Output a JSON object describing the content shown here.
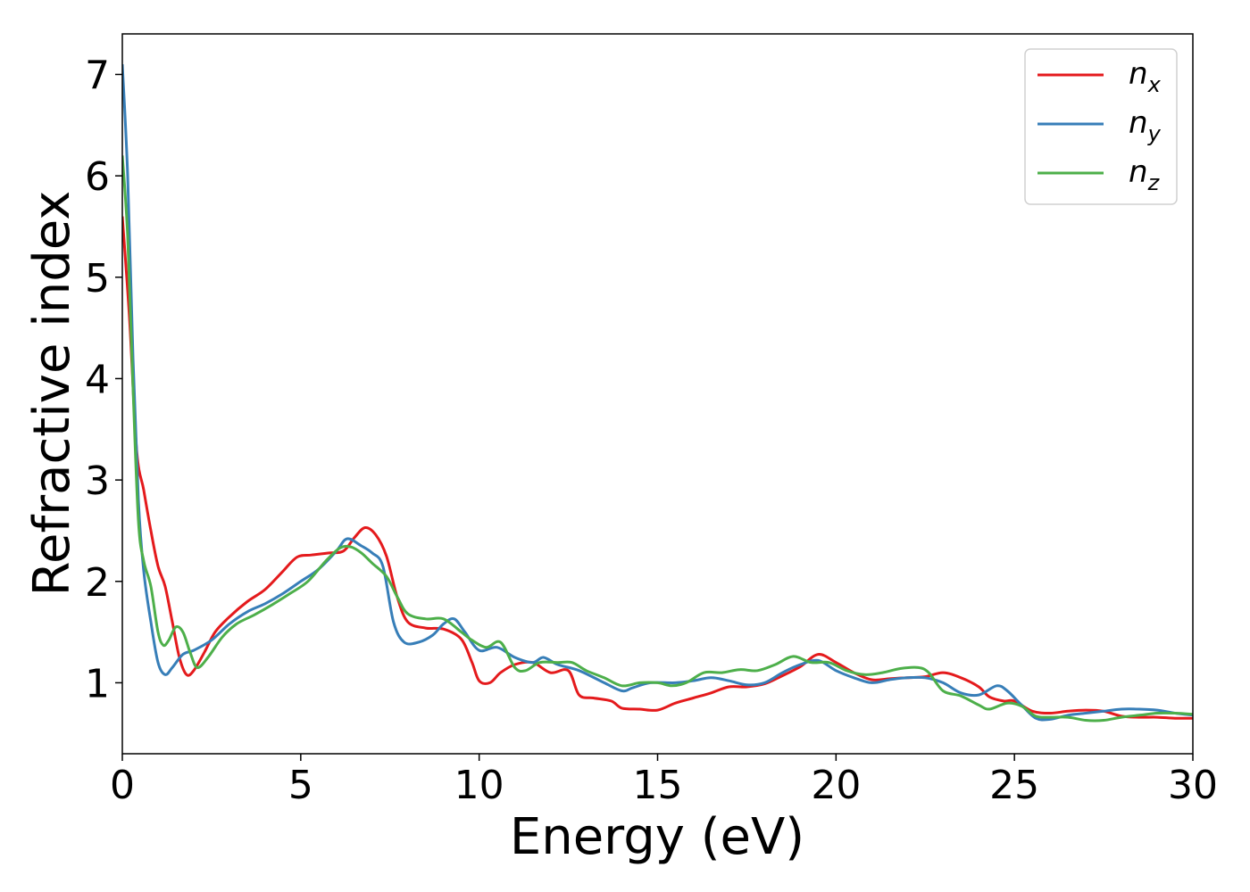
{
  "chart_data": {
    "type": "line",
    "title": "",
    "xlabel": "Energy (eV)",
    "ylabel": "Refractive index",
    "xlim": [
      0,
      30
    ],
    "ylim": [
      0.3,
      7.4
    ],
    "xticks": [
      0,
      5,
      10,
      15,
      20,
      25,
      30
    ],
    "yticks": [
      1,
      2,
      3,
      4,
      5,
      6,
      7
    ],
    "grid": false,
    "legend_position": "top-right",
    "series": [
      {
        "name": "n",
        "subscript": "x",
        "color": "#e41a1c",
        "points": [
          [
            0,
            5.6
          ],
          [
            0.2,
            4.6
          ],
          [
            0.4,
            3.3
          ],
          [
            0.6,
            2.9
          ],
          [
            0.8,
            2.5
          ],
          [
            1.0,
            2.15
          ],
          [
            1.2,
            1.95
          ],
          [
            1.4,
            1.6
          ],
          [
            1.6,
            1.25
          ],
          [
            1.8,
            1.08
          ],
          [
            2.0,
            1.12
          ],
          [
            2.3,
            1.3
          ],
          [
            2.6,
            1.5
          ],
          [
            3.0,
            1.65
          ],
          [
            3.5,
            1.8
          ],
          [
            4.0,
            1.92
          ],
          [
            4.5,
            2.1
          ],
          [
            4.9,
            2.24
          ],
          [
            5.3,
            2.26
          ],
          [
            5.8,
            2.28
          ],
          [
            6.2,
            2.3
          ],
          [
            6.5,
            2.43
          ],
          [
            6.8,
            2.53
          ],
          [
            7.1,
            2.46
          ],
          [
            7.4,
            2.25
          ],
          [
            7.7,
            1.85
          ],
          [
            8.0,
            1.6
          ],
          [
            8.5,
            1.54
          ],
          [
            9.0,
            1.53
          ],
          [
            9.5,
            1.43
          ],
          [
            9.8,
            1.2
          ],
          [
            10.0,
            1.02
          ],
          [
            10.3,
            1.0
          ],
          [
            10.6,
            1.1
          ],
          [
            11.0,
            1.18
          ],
          [
            11.5,
            1.2
          ],
          [
            12.0,
            1.1
          ],
          [
            12.5,
            1.12
          ],
          [
            12.8,
            0.88
          ],
          [
            13.2,
            0.85
          ],
          [
            13.7,
            0.82
          ],
          [
            14.0,
            0.75
          ],
          [
            14.5,
            0.74
          ],
          [
            15.0,
            0.73
          ],
          [
            15.5,
            0.8
          ],
          [
            16.0,
            0.85
          ],
          [
            16.5,
            0.9
          ],
          [
            17.0,
            0.96
          ],
          [
            17.5,
            0.96
          ],
          [
            18.0,
            0.99
          ],
          [
            18.5,
            1.07
          ],
          [
            19.0,
            1.16
          ],
          [
            19.5,
            1.28
          ],
          [
            20.0,
            1.2
          ],
          [
            20.5,
            1.1
          ],
          [
            21.0,
            1.03
          ],
          [
            21.5,
            1.04
          ],
          [
            22.0,
            1.05
          ],
          [
            22.5,
            1.06
          ],
          [
            23.0,
            1.1
          ],
          [
            23.5,
            1.05
          ],
          [
            24.0,
            0.96
          ],
          [
            24.3,
            0.86
          ],
          [
            24.7,
            0.82
          ],
          [
            25.0,
            0.82
          ],
          [
            25.5,
            0.72
          ],
          [
            26.0,
            0.7
          ],
          [
            26.5,
            0.72
          ],
          [
            27.0,
            0.73
          ],
          [
            27.5,
            0.72
          ],
          [
            28.0,
            0.67
          ],
          [
            28.5,
            0.66
          ],
          [
            29.0,
            0.66
          ],
          [
            29.5,
            0.65
          ],
          [
            30.0,
            0.65
          ]
        ]
      },
      {
        "name": "n",
        "subscript": "y",
        "color": "#377eb8",
        "points": [
          [
            0,
            7.1
          ],
          [
            0.15,
            6.0
          ],
          [
            0.3,
            4.2
          ],
          [
            0.45,
            2.8
          ],
          [
            0.6,
            2.1
          ],
          [
            0.8,
            1.6
          ],
          [
            1.0,
            1.2
          ],
          [
            1.2,
            1.08
          ],
          [
            1.4,
            1.15
          ],
          [
            1.7,
            1.28
          ],
          [
            2.0,
            1.32
          ],
          [
            2.5,
            1.42
          ],
          [
            3.0,
            1.58
          ],
          [
            3.5,
            1.7
          ],
          [
            4.0,
            1.78
          ],
          [
            4.5,
            1.88
          ],
          [
            5.0,
            2.0
          ],
          [
            5.5,
            2.12
          ],
          [
            6.0,
            2.3
          ],
          [
            6.3,
            2.42
          ],
          [
            6.7,
            2.35
          ],
          [
            7.0,
            2.28
          ],
          [
            7.3,
            2.15
          ],
          [
            7.6,
            1.6
          ],
          [
            7.9,
            1.4
          ],
          [
            8.3,
            1.4
          ],
          [
            8.7,
            1.47
          ],
          [
            9.0,
            1.58
          ],
          [
            9.3,
            1.63
          ],
          [
            9.6,
            1.5
          ],
          [
            10.0,
            1.32
          ],
          [
            10.5,
            1.35
          ],
          [
            11.0,
            1.25
          ],
          [
            11.5,
            1.2
          ],
          [
            11.8,
            1.25
          ],
          [
            12.2,
            1.18
          ],
          [
            12.8,
            1.12
          ],
          [
            13.5,
            1.0
          ],
          [
            14.0,
            0.92
          ],
          [
            14.3,
            0.95
          ],
          [
            14.8,
            1.0
          ],
          [
            15.5,
            1.0
          ],
          [
            16.0,
            1.02
          ],
          [
            16.5,
            1.05
          ],
          [
            17.0,
            1.02
          ],
          [
            17.5,
            0.98
          ],
          [
            18.0,
            1.0
          ],
          [
            18.5,
            1.1
          ],
          [
            19.0,
            1.18
          ],
          [
            19.5,
            1.22
          ],
          [
            20.0,
            1.12
          ],
          [
            20.5,
            1.05
          ],
          [
            21.0,
            1.0
          ],
          [
            21.5,
            1.03
          ],
          [
            22.0,
            1.05
          ],
          [
            22.5,
            1.05
          ],
          [
            23.0,
            1.0
          ],
          [
            23.5,
            0.9
          ],
          [
            24.0,
            0.88
          ],
          [
            24.5,
            0.97
          ],
          [
            24.8,
            0.92
          ],
          [
            25.2,
            0.78
          ],
          [
            25.6,
            0.65
          ],
          [
            26.0,
            0.64
          ],
          [
            26.5,
            0.68
          ],
          [
            27.0,
            0.7
          ],
          [
            27.5,
            0.72
          ],
          [
            28.0,
            0.74
          ],
          [
            28.5,
            0.74
          ],
          [
            29.0,
            0.73
          ],
          [
            29.5,
            0.7
          ],
          [
            30.0,
            0.68
          ]
        ]
      },
      {
        "name": "n",
        "subscript": "z",
        "color": "#4daf4a",
        "points": [
          [
            0,
            6.2
          ],
          [
            0.15,
            5.4
          ],
          [
            0.3,
            3.9
          ],
          [
            0.45,
            2.6
          ],
          [
            0.6,
            2.2
          ],
          [
            0.8,
            1.95
          ],
          [
            1.0,
            1.5
          ],
          [
            1.15,
            1.37
          ],
          [
            1.3,
            1.42
          ],
          [
            1.5,
            1.55
          ],
          [
            1.7,
            1.5
          ],
          [
            1.9,
            1.3
          ],
          [
            2.1,
            1.15
          ],
          [
            2.4,
            1.25
          ],
          [
            2.8,
            1.45
          ],
          [
            3.2,
            1.58
          ],
          [
            3.7,
            1.67
          ],
          [
            4.2,
            1.77
          ],
          [
            4.7,
            1.88
          ],
          [
            5.2,
            2.0
          ],
          [
            5.7,
            2.2
          ],
          [
            6.1,
            2.33
          ],
          [
            6.4,
            2.34
          ],
          [
            6.7,
            2.28
          ],
          [
            7.0,
            2.18
          ],
          [
            7.4,
            2.05
          ],
          [
            7.7,
            1.85
          ],
          [
            8.0,
            1.68
          ],
          [
            8.5,
            1.63
          ],
          [
            9.0,
            1.63
          ],
          [
            9.5,
            1.5
          ],
          [
            9.8,
            1.42
          ],
          [
            10.2,
            1.35
          ],
          [
            10.6,
            1.4
          ],
          [
            11.0,
            1.15
          ],
          [
            11.3,
            1.12
          ],
          [
            11.7,
            1.2
          ],
          [
            12.2,
            1.2
          ],
          [
            12.6,
            1.2
          ],
          [
            13.0,
            1.12
          ],
          [
            13.5,
            1.05
          ],
          [
            14.0,
            0.97
          ],
          [
            14.5,
            1.0
          ],
          [
            15.0,
            1.0
          ],
          [
            15.4,
            0.97
          ],
          [
            15.8,
            1.0
          ],
          [
            16.3,
            1.1
          ],
          [
            16.8,
            1.1
          ],
          [
            17.3,
            1.13
          ],
          [
            17.8,
            1.12
          ],
          [
            18.3,
            1.18
          ],
          [
            18.8,
            1.26
          ],
          [
            19.3,
            1.2
          ],
          [
            19.8,
            1.2
          ],
          [
            20.3,
            1.12
          ],
          [
            20.8,
            1.08
          ],
          [
            21.3,
            1.1
          ],
          [
            21.8,
            1.14
          ],
          [
            22.3,
            1.15
          ],
          [
            22.6,
            1.1
          ],
          [
            23.0,
            0.92
          ],
          [
            23.5,
            0.87
          ],
          [
            24.0,
            0.78
          ],
          [
            24.3,
            0.74
          ],
          [
            24.8,
            0.8
          ],
          [
            25.2,
            0.77
          ],
          [
            25.6,
            0.67
          ],
          [
            26.0,
            0.66
          ],
          [
            26.5,
            0.66
          ],
          [
            27.0,
            0.63
          ],
          [
            27.5,
            0.63
          ],
          [
            28.0,
            0.66
          ],
          [
            28.5,
            0.68
          ],
          [
            29.0,
            0.7
          ],
          [
            29.5,
            0.7
          ],
          [
            30.0,
            0.69
          ]
        ]
      }
    ]
  }
}
